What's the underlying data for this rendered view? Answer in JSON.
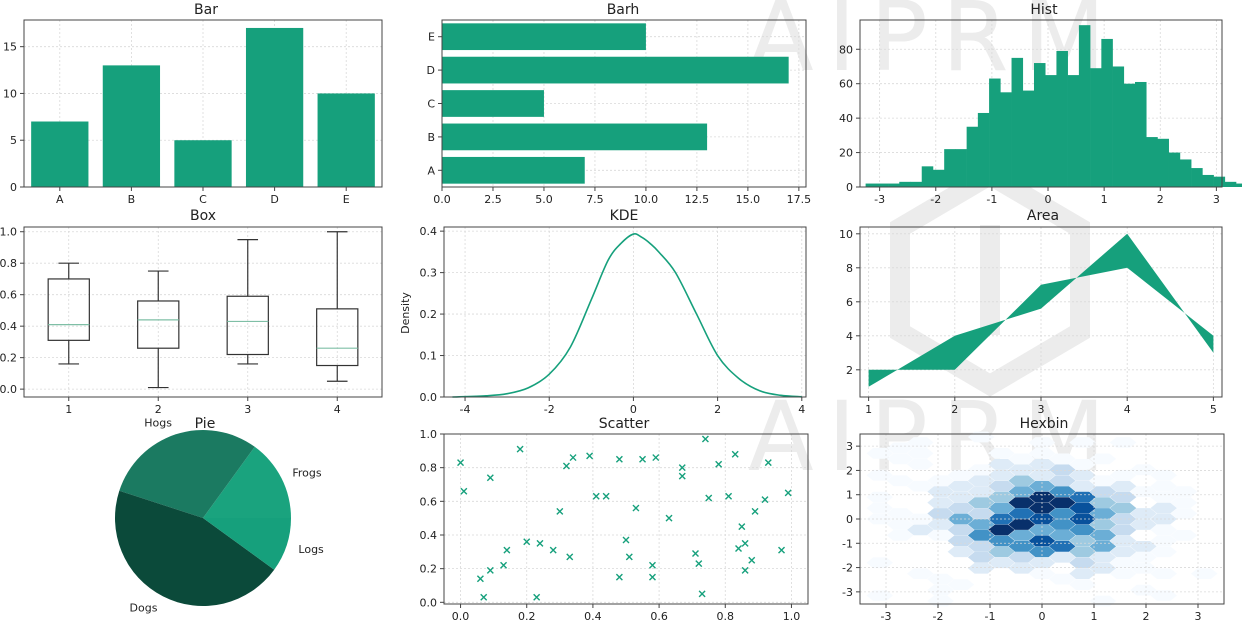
{
  "watermark": {
    "text": "AIPRM"
  },
  "chart_data": [
    {
      "id": "bar",
      "type": "bar",
      "title": "Bar",
      "categories": [
        "A",
        "B",
        "C",
        "D",
        "E"
      ],
      "values": [
        7,
        13,
        5,
        17,
        10
      ],
      "ylim": [
        0,
        17.85
      ],
      "yticks": [
        0,
        5,
        10,
        15
      ],
      "color": "#16a07c",
      "grid": true
    },
    {
      "id": "barh",
      "type": "bar",
      "orientation": "horizontal",
      "title": "Barh",
      "categories": [
        "A",
        "B",
        "C",
        "D",
        "E"
      ],
      "values": [
        7,
        13,
        5,
        17,
        10
      ],
      "xlim": [
        0,
        17.85
      ],
      "xticks": [
        0.0,
        2.5,
        5.0,
        7.5,
        10.0,
        12.5,
        15.0,
        17.5
      ],
      "color": "#16a07c",
      "grid": true
    },
    {
      "id": "hist",
      "type": "bar",
      "subtype": "histogram",
      "title": "Hist",
      "bin_start": -3.25,
      "bin_width": 0.2,
      "values": [
        2,
        2,
        2,
        3,
        3,
        12,
        10,
        22,
        22,
        35,
        43,
        63,
        55,
        75,
        56,
        72,
        65,
        79,
        65,
        94,
        69,
        86,
        70,
        60,
        61,
        29,
        28,
        20,
        16,
        11,
        7,
        6,
        3,
        2
      ],
      "xlim": [
        -3.35,
        3.1
      ],
      "ylim": [
        0,
        97
      ],
      "xticks": [
        -3,
        -2,
        -1,
        0,
        1,
        2,
        3
      ],
      "yticks": [
        0,
        20,
        40,
        60,
        80
      ],
      "color": "#16a07c",
      "grid": true
    },
    {
      "id": "box",
      "type": "box",
      "title": "Box",
      "categories": [
        "1",
        "2",
        "3",
        "4"
      ],
      "boxes": [
        {
          "min": 0.16,
          "q1": 0.31,
          "median": 0.41,
          "q3": 0.7,
          "max": 0.8
        },
        {
          "min": 0.01,
          "q1": 0.26,
          "median": 0.44,
          "q3": 0.56,
          "max": 0.75
        },
        {
          "min": 0.16,
          "q1": 0.22,
          "median": 0.43,
          "q3": 0.59,
          "max": 0.95
        },
        {
          "min": 0.05,
          "q1": 0.15,
          "median": 0.26,
          "q3": 0.51,
          "max": 1.0
        }
      ],
      "ylim": [
        -0.05,
        1.03
      ],
      "yticks": [
        "0.0",
        "0.2",
        "0.4",
        "0.6",
        "0.8",
        "1.0"
      ],
      "median_color": "#7fbfa6",
      "grid": true
    },
    {
      "id": "kde",
      "type": "line",
      "subtype": "kde",
      "title": "KDE",
      "ylabel": "Density",
      "x": [
        -4.3,
        -3.5,
        -3,
        -2.5,
        -2,
        -1.5,
        -1,
        -0.6,
        -0.3,
        0,
        0.2,
        0.4,
        0.6,
        1,
        1.5,
        2,
        2.5,
        3,
        3.5,
        4
      ],
      "y": [
        0,
        0.003,
        0.008,
        0.022,
        0.055,
        0.12,
        0.235,
        0.33,
        0.37,
        0.393,
        0.385,
        0.37,
        0.35,
        0.3,
        0.2,
        0.1,
        0.045,
        0.015,
        0.004,
        0.0005
      ],
      "xlim": [
        -4.5,
        4.1
      ],
      "ylim": [
        0,
        0.41
      ],
      "xticks": [
        -4,
        -2,
        0,
        2,
        4
      ],
      "yticks": [
        "0.0",
        "0.1",
        "0.2",
        "0.3",
        "0.4"
      ],
      "color": "#16a07c",
      "grid": true
    },
    {
      "id": "area",
      "type": "area",
      "title": "Area",
      "x": [
        1,
        2,
        3,
        4,
        5
      ],
      "y1": [
        1,
        4,
        5.6,
        10,
        3
      ],
      "y2": [
        2,
        2,
        7,
        8,
        4
      ],
      "xlim": [
        0.9,
        5.1
      ],
      "ylim": [
        0.4,
        10.4
      ],
      "xticks": [
        1,
        2,
        3,
        4,
        5
      ],
      "yticks": [
        2,
        4,
        6,
        8,
        10
      ],
      "color": "#16a07c",
      "grid": true
    },
    {
      "id": "pie",
      "type": "pie",
      "title": "Pie",
      "labels": [
        "Frogs",
        "Hogs",
        "Dogs",
        "Logs"
      ],
      "values": [
        15,
        30,
        45,
        10
      ],
      "colors": [
        "#1aa37e",
        "#1b7a61",
        "#0b4a3a",
        "#16a07c"
      ]
    },
    {
      "id": "scatter",
      "type": "scatter",
      "title": "Scatter",
      "marker": "x",
      "points": [
        [
          0.0,
          0.83
        ],
        [
          0.01,
          0.66
        ],
        [
          0.06,
          0.14
        ],
        [
          0.07,
          0.03
        ],
        [
          0.09,
          0.19
        ],
        [
          0.09,
          0.74
        ],
        [
          0.13,
          0.22
        ],
        [
          0.14,
          0.31
        ],
        [
          0.18,
          0.91
        ],
        [
          0.2,
          0.36
        ],
        [
          0.23,
          0.03
        ],
        [
          0.24,
          0.35
        ],
        [
          0.28,
          0.31
        ],
        [
          0.3,
          0.54
        ],
        [
          0.32,
          0.81
        ],
        [
          0.33,
          0.27
        ],
        [
          0.34,
          0.86
        ],
        [
          0.39,
          0.87
        ],
        [
          0.41,
          0.63
        ],
        [
          0.44,
          0.63
        ],
        [
          0.48,
          0.85
        ],
        [
          0.48,
          0.15
        ],
        [
          0.5,
          0.37
        ],
        [
          0.51,
          0.27
        ],
        [
          0.53,
          0.56
        ],
        [
          0.55,
          0.85
        ],
        [
          0.58,
          0.22
        ],
        [
          0.58,
          0.15
        ],
        [
          0.59,
          0.86
        ],
        [
          0.63,
          0.5
        ],
        [
          0.67,
          0.8
        ],
        [
          0.67,
          0.75
        ],
        [
          0.71,
          0.29
        ],
        [
          0.72,
          0.23
        ],
        [
          0.73,
          0.05
        ],
        [
          0.74,
          0.97
        ],
        [
          0.75,
          0.62
        ],
        [
          0.78,
          0.82
        ],
        [
          0.81,
          0.63
        ],
        [
          0.83,
          0.88
        ],
        [
          0.84,
          0.32
        ],
        [
          0.85,
          0.45
        ],
        [
          0.86,
          0.35
        ],
        [
          0.86,
          0.19
        ],
        [
          0.88,
          0.25
        ],
        [
          0.89,
          0.54
        ],
        [
          0.92,
          0.61
        ],
        [
          0.93,
          0.83
        ],
        [
          0.97,
          0.31
        ],
        [
          0.99,
          0.65
        ]
      ],
      "xlim": [
        -0.05,
        1.05
      ],
      "ylim": [
        -0.01,
        1.0
      ],
      "xticks": [
        "0.0",
        "0.2",
        "0.4",
        "0.6",
        "0.8",
        "1.0"
      ],
      "yticks": [
        "0.0",
        "0.2",
        "0.4",
        "0.6",
        "0.8",
        "1.0"
      ],
      "color": "#16a07c",
      "grid": true
    },
    {
      "id": "hexbin",
      "type": "heatmap",
      "subtype": "hexbin",
      "title": "Hexbin",
      "xlim": [
        -3.5,
        3.5
      ],
      "ylim": [
        -3.5,
        3.5
      ],
      "xticks": [
        -3,
        -2,
        -1,
        0,
        1,
        2,
        3
      ],
      "yticks": [
        -3,
        -2,
        -1,
        0,
        1,
        2,
        3
      ],
      "cmap": "Blues",
      "grid": true
    }
  ]
}
